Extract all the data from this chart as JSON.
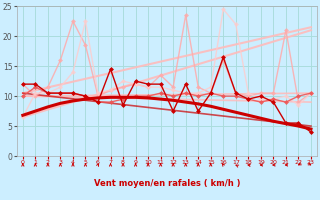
{
  "xlabel": "Vent moyen/en rafales ( km/h )",
  "xlim": [
    -0.5,
    23.5
  ],
  "ylim": [
    0,
    25
  ],
  "xticks": [
    0,
    1,
    2,
    3,
    4,
    5,
    6,
    7,
    8,
    9,
    10,
    11,
    12,
    13,
    14,
    15,
    16,
    17,
    18,
    19,
    20,
    21,
    22,
    23
  ],
  "yticks": [
    0,
    5,
    10,
    15,
    20,
    25
  ],
  "bg_color": "#cceeff",
  "grid_color": "#aadddd",
  "series": [
    {
      "label": "smooth_dark_curve",
      "x": [
        0,
        1,
        2,
        3,
        4,
        5,
        6,
        7,
        8,
        9,
        10,
        11,
        12,
        13,
        14,
        15,
        16,
        17,
        18,
        19,
        20,
        21,
        22,
        23
      ],
      "y": [
        6.8,
        7.5,
        8.2,
        8.8,
        9.2,
        9.5,
        9.7,
        9.8,
        9.8,
        9.8,
        9.7,
        9.5,
        9.3,
        9.0,
        8.7,
        8.3,
        7.8,
        7.3,
        6.8,
        6.3,
        5.8,
        5.4,
        5.0,
        4.5
      ],
      "color": "#cc0000",
      "lw": 2.2,
      "marker": null,
      "alpha": 1.0,
      "zorder": 4
    },
    {
      "label": "upper_trend_line1",
      "x": [
        0,
        23
      ],
      "y": [
        6.5,
        21.0
      ],
      "color": "#ffbbbb",
      "lw": 1.5,
      "marker": null,
      "alpha": 0.9,
      "zorder": 2
    },
    {
      "label": "upper_trend_line2",
      "x": [
        0,
        23
      ],
      "y": [
        10.5,
        21.5
      ],
      "color": "#ffbbbb",
      "lw": 1.5,
      "marker": null,
      "alpha": 0.9,
      "zorder": 2
    },
    {
      "label": "flat_trend_line1",
      "x": [
        0,
        23
      ],
      "y": [
        10.0,
        10.5
      ],
      "color": "#ffbbbb",
      "lw": 1.2,
      "marker": null,
      "alpha": 0.9,
      "zorder": 2
    },
    {
      "label": "flat_trend_line2",
      "x": [
        0,
        23
      ],
      "y": [
        10.0,
        9.0
      ],
      "color": "#ffbbbb",
      "lw": 1.2,
      "marker": null,
      "alpha": 0.85,
      "zorder": 2
    },
    {
      "label": "declining_line",
      "x": [
        0,
        23
      ],
      "y": [
        10.5,
        5.0
      ],
      "color": "#cc0000",
      "lw": 1.2,
      "marker": null,
      "alpha": 0.7,
      "zorder": 2
    },
    {
      "label": "noisy_light1",
      "x": [
        0,
        1,
        2,
        3,
        4,
        5,
        6,
        7,
        8,
        9,
        10,
        11,
        12,
        13,
        14,
        15,
        16,
        17,
        18,
        19,
        20,
        21,
        22,
        23
      ],
      "y": [
        12.0,
        10.0,
        11.5,
        16.0,
        22.5,
        18.5,
        10.0,
        11.0,
        11.5,
        12.0,
        11.5,
        13.5,
        11.5,
        23.5,
        11.5,
        10.5,
        16.0,
        10.5,
        10.0,
        10.5,
        10.5,
        21.0,
        9.0,
        10.5
      ],
      "color": "#ffaaaa",
      "lw": 1.0,
      "marker": "D",
      "markersize": 2.5,
      "alpha": 0.85,
      "zorder": 3
    },
    {
      "label": "noisy_light2",
      "x": [
        0,
        1,
        2,
        3,
        4,
        5,
        6,
        7,
        8,
        9,
        10,
        11,
        12,
        13,
        14,
        15,
        16,
        17,
        18,
        19,
        20,
        21,
        22,
        23
      ],
      "y": [
        6.5,
        10.5,
        10.5,
        11.5,
        14.0,
        22.5,
        10.5,
        11.0,
        12.5,
        12.0,
        11.5,
        11.5,
        11.0,
        10.5,
        10.5,
        11.5,
        24.5,
        22.0,
        10.5,
        9.5,
        9.5,
        10.0,
        8.5,
        10.5
      ],
      "color": "#ffcccc",
      "lw": 1.0,
      "marker": "D",
      "markersize": 2.5,
      "alpha": 0.8,
      "zorder": 3
    },
    {
      "label": "noisy_dark1",
      "x": [
        0,
        1,
        2,
        3,
        4,
        5,
        6,
        7,
        8,
        9,
        10,
        11,
        12,
        13,
        14,
        15,
        16,
        17,
        18,
        19,
        20,
        21,
        22,
        23
      ],
      "y": [
        12.0,
        12.0,
        10.5,
        10.5,
        10.5,
        10.0,
        9.0,
        14.5,
        8.5,
        12.5,
        12.0,
        12.0,
        7.5,
        12.0,
        7.5,
        10.5,
        16.5,
        10.5,
        9.5,
        10.0,
        9.0,
        5.5,
        5.5,
        4.0
      ],
      "color": "#cc0000",
      "lw": 1.0,
      "marker": "D",
      "markersize": 2.5,
      "alpha": 1.0,
      "zorder": 5
    },
    {
      "label": "noisy_med1",
      "x": [
        0,
        1,
        2,
        3,
        4,
        5,
        6,
        7,
        8,
        9,
        10,
        11,
        12,
        13,
        14,
        15,
        16,
        17,
        18,
        19,
        20,
        21,
        22,
        23
      ],
      "y": [
        10.0,
        11.5,
        10.5,
        10.5,
        10.5,
        10.0,
        9.0,
        9.0,
        9.5,
        10.0,
        10.0,
        10.5,
        10.0,
        10.5,
        10.0,
        10.5,
        10.0,
        10.0,
        9.5,
        9.0,
        9.5,
        9.0,
        10.0,
        10.5
      ],
      "color": "#ee5555",
      "lw": 1.0,
      "marker": "D",
      "markersize": 2.5,
      "alpha": 0.9,
      "zorder": 3
    }
  ],
  "wind_arrows": {
    "color": "#cc0000",
    "x": [
      0,
      1,
      2,
      3,
      4,
      5,
      6,
      7,
      8,
      9,
      10,
      11,
      12,
      13,
      14,
      15,
      16,
      17,
      18,
      19,
      20,
      21,
      22,
      23
    ],
    "angles_deg": [
      180,
      180,
      180,
      180,
      180,
      180,
      165,
      180,
      180,
      180,
      180,
      180,
      180,
      180,
      180,
      180,
      200,
      225,
      250,
      270,
      270,
      270,
      315,
      45
    ]
  }
}
